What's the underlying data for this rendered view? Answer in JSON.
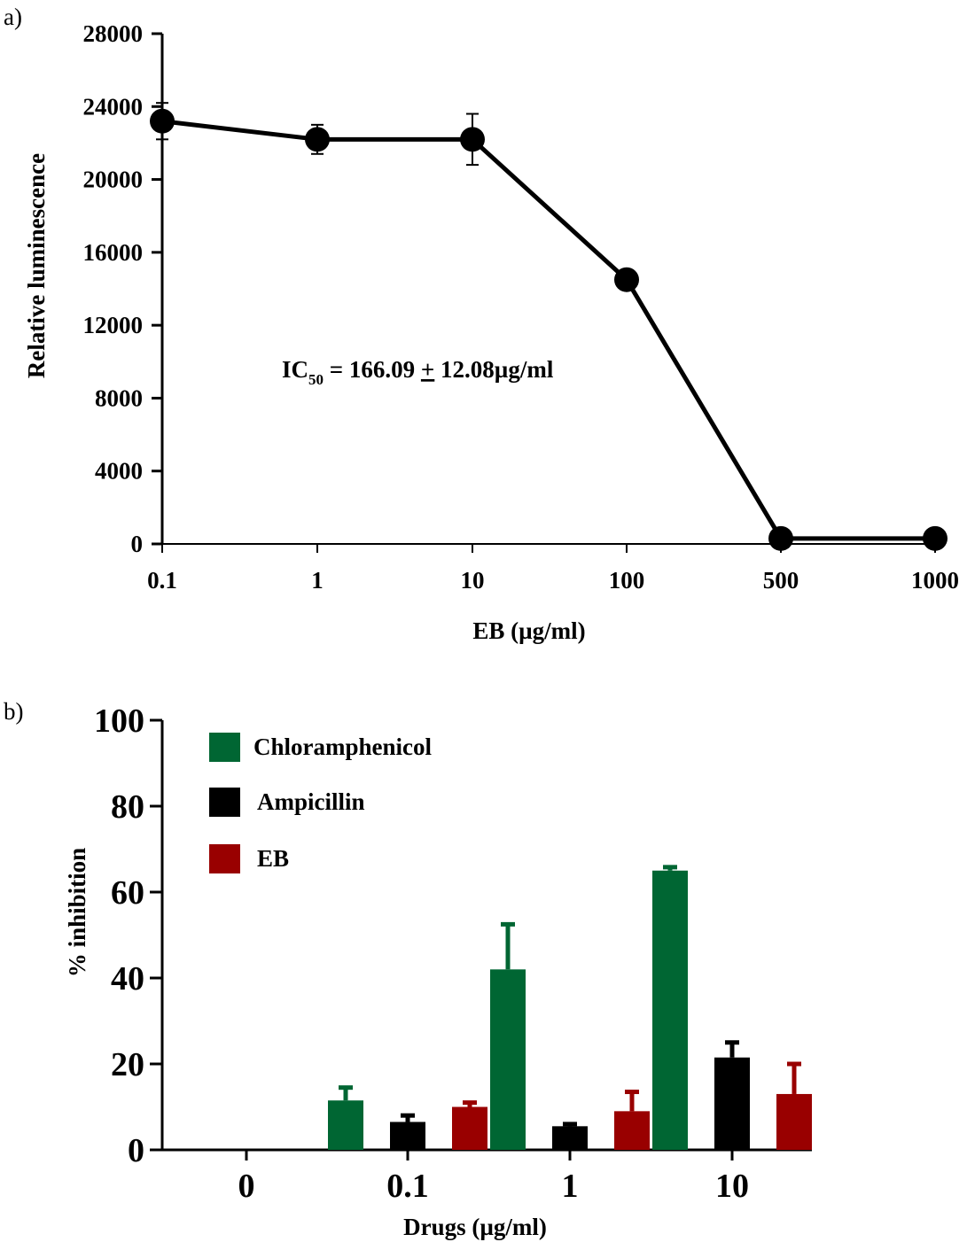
{
  "panel_a": {
    "label": "a)",
    "annotation": {
      "prefix": "IC",
      "subscript": "50",
      "suffix": " =  166.09 ",
      "pm": "+",
      "tail": " 12.08µg/ml"
    }
  },
  "panel_b": {
    "label": "b)"
  },
  "chart_data": [
    {
      "type": "line",
      "title": "",
      "xlabel": "EB (µg/ml)",
      "ylabel": "Relative luminescence",
      "x_ticks": [
        "0.1",
        "1",
        "10",
        "100",
        "500",
        "1000"
      ],
      "ylim": [
        0,
        28000
      ],
      "y_ticks": [
        0,
        4000,
        8000,
        12000,
        16000,
        20000,
        24000,
        28000
      ],
      "y_tick_labels": [
        "0",
        "4000",
        "8000",
        "12000",
        "16000",
        "20000",
        "24000",
        "28000"
      ],
      "grid": false,
      "series": [
        {
          "x": [
            "0.1",
            "1",
            "10",
            "100",
            "500",
            "1000"
          ],
          "values": [
            23200,
            22200,
            22200,
            14500,
            300,
            300
          ],
          "error": [
            1000,
            800,
            1400,
            500,
            100,
            100
          ],
          "color": "#000000"
        }
      ]
    },
    {
      "type": "bar",
      "title": "",
      "xlabel": "Drugs (µg/ml)",
      "ylabel": "% inhibition",
      "categories": [
        "0",
        "0.1",
        "1",
        "10"
      ],
      "ylim": [
        0,
        100
      ],
      "y_ticks": [
        0,
        20,
        40,
        60,
        80,
        100
      ],
      "y_tick_labels": [
        "0",
        "20",
        "40",
        "60",
        "80",
        "100"
      ],
      "grid": false,
      "legend_position": "top-left",
      "series": [
        {
          "name": "Chloramphenicol",
          "color": "#006633",
          "values": [
            0,
            11.5,
            42,
            65
          ],
          "error": [
            0,
            3,
            10.5,
            0.8
          ]
        },
        {
          "name": "Ampicillin",
          "color": "#000000",
          "values": [
            0,
            6.5,
            5.5,
            21.5
          ],
          "error": [
            0,
            1.5,
            0.5,
            3.5
          ]
        },
        {
          "name": "EB",
          "color": "#990000",
          "values": [
            0,
            10,
            9,
            13
          ],
          "error": [
            0,
            1,
            4.5,
            7
          ]
        }
      ]
    }
  ]
}
